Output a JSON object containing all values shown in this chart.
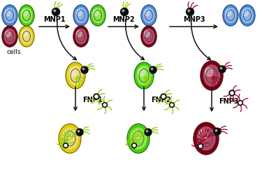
{
  "bg_color": "#ffffff",
  "blue_out": "#4488dd",
  "blue_in": "#99bbee",
  "green_out": "#44cc11",
  "green_in": "#99ee55",
  "yellow_out": "#ddcc00",
  "yellow_in": "#eedd88",
  "dred_out": "#770011",
  "dred_in": "#bb5577",
  "lime_sc": "#88cc00",
  "red_sc": "#990022",
  "arrow_color": "#111111",
  "labels": [
    "MNP1",
    "MNP2",
    "MNP3",
    "FNP1",
    "FNP2",
    "FNP3",
    "cells"
  ],
  "label_fontsize": 6.5,
  "label_fontsize_bold": 7.0
}
